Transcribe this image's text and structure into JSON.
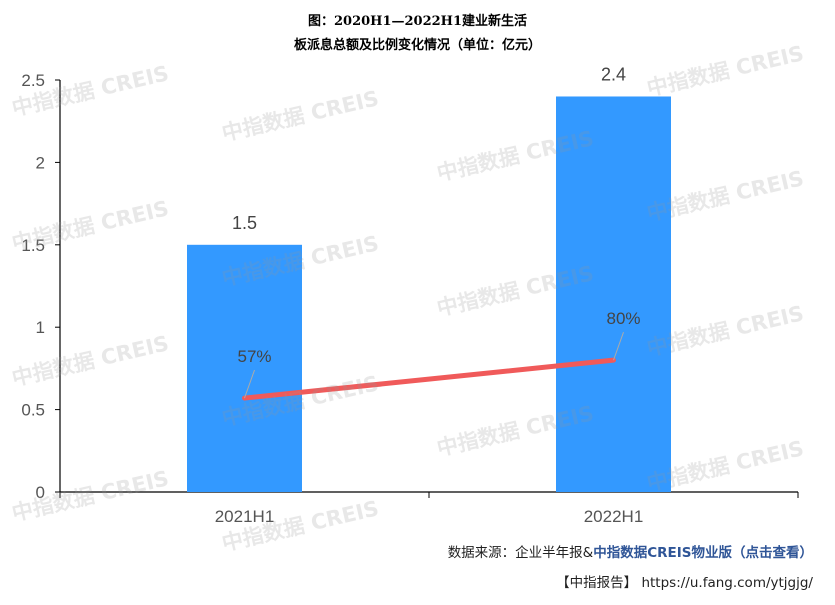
{
  "title_line1": "图：2020H1—2022H1建业新生活",
  "title_line2": "板派息总额及比例变化情况（单位：亿元）",
  "chart_data": {
    "type": "bar",
    "categories": [
      "2021H1",
      "2022H1"
    ],
    "values": [
      1.5,
      2.4
    ],
    "bar_labels": [
      "1.5",
      "2.4"
    ],
    "line_values": [
      0.57,
      0.8
    ],
    "line_labels": [
      "57%",
      "80%"
    ],
    "ylim": [
      0,
      2.5
    ],
    "yticks": [
      "0",
      "0.5",
      "1",
      "1.5",
      "2",
      "2.5"
    ],
    "bar_color": "#3399ff",
    "line_color": "#f05a5a",
    "grid": false,
    "xlabel": "",
    "ylabel": ""
  },
  "footer": {
    "source_prefix": "数据来源：企业半年报&",
    "source_link": "中指数据CREIS物业版（点击查看）",
    "report_label": "【中指报告】",
    "report_url": "https://u.fang.com/ytjgjg/"
  },
  "watermark_text": "中指数据 CREIS"
}
